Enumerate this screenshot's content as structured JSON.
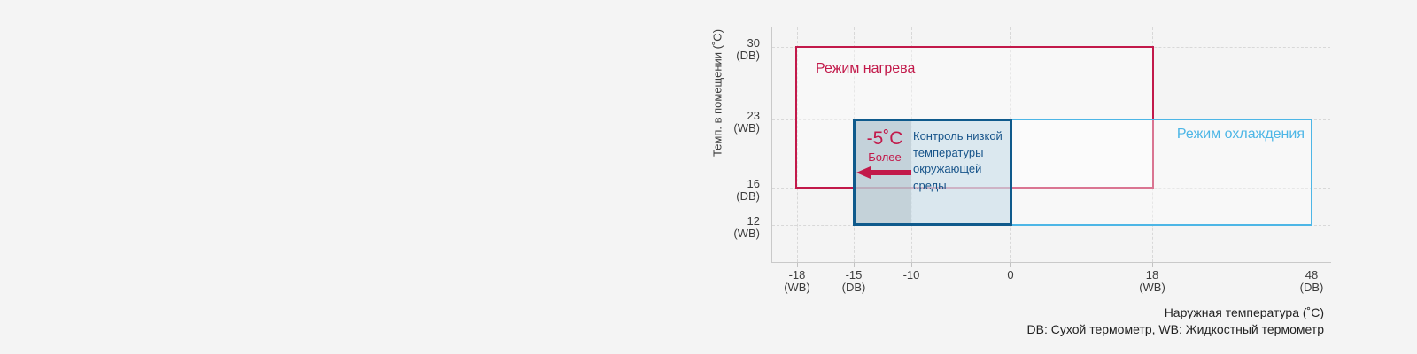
{
  "background_color": "#f4f4f4",
  "chart_data": {
    "type": "range-rectangles",
    "title": "",
    "xlabel": "Наружная температура (˚C)",
    "ylabel": "Темп. в помещении (˚C)",
    "footnote": "DB: Сухой термометр, WB: Жидкостный термометр",
    "grid": "dashed",
    "x_axis": {
      "ticks": [
        {
          "label": "-18",
          "sub": "(WB)"
        },
        {
          "label": "-15",
          "sub": "(DB)"
        },
        {
          "label": "-10",
          "sub": ""
        },
        {
          "label": "0",
          "sub": ""
        },
        {
          "label": "18",
          "sub": "(WB)"
        },
        {
          "label": "48",
          "sub": "(DB)"
        }
      ]
    },
    "y_axis": {
      "ticks": [
        {
          "label": "30",
          "sub": "(DB)"
        },
        {
          "label": "23",
          "sub": "(WB)"
        },
        {
          "label": "16",
          "sub": "(DB)"
        },
        {
          "label": "12",
          "sub": "(WB)"
        }
      ]
    },
    "series": [
      {
        "name": "Режим нагрева",
        "x_range": [
          -18,
          18
        ],
        "y_range": [
          16,
          30
        ],
        "color": "#c2194a"
      },
      {
        "name": "Режим охлаждения",
        "x_range": [
          -15,
          48
        ],
        "y_range": [
          12,
          23
        ],
        "color": "#4db6e6"
      },
      {
        "name": "Контроль низкой\nтемпературы\nокружающей среды",
        "x_range": [
          -15,
          0
        ],
        "y_range": [
          12,
          23
        ],
        "color": "#0f5a8c",
        "highlight_x_range": [
          -15,
          -10
        ]
      }
    ],
    "annotation": {
      "value_label": "-5˚C",
      "sub_label": "Более",
      "arrow_direction": "left",
      "color": "#c2194a"
    }
  }
}
